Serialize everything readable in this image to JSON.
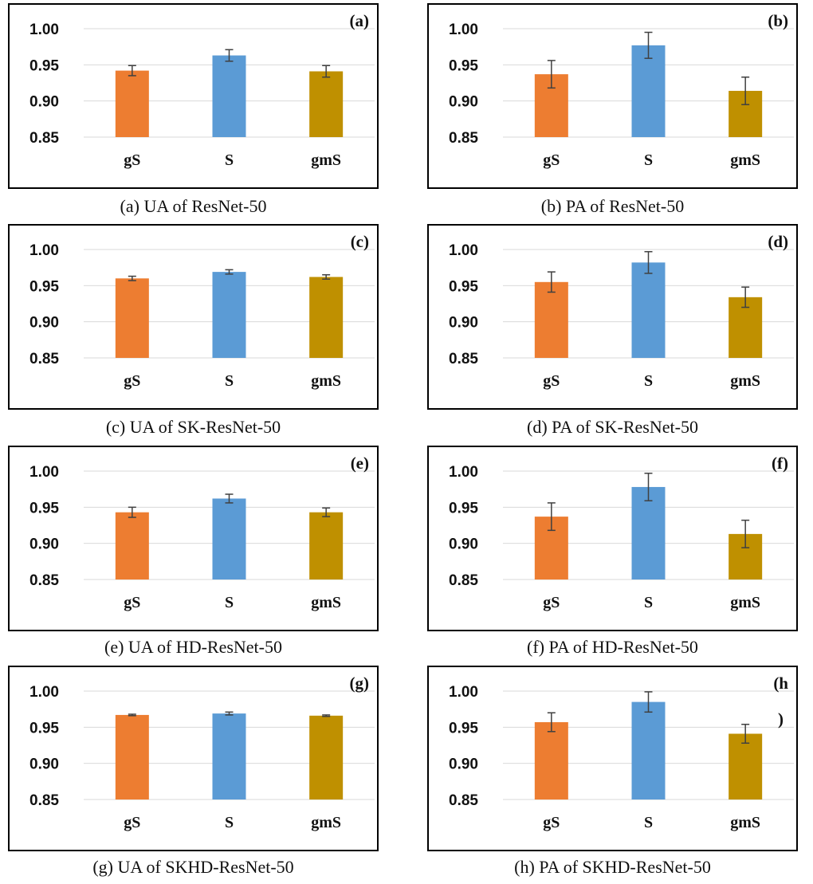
{
  "colors": {
    "gS": "#ED7D31",
    "S": "#5B9BD5",
    "gmS": "#BF9000",
    "grid": "#d9d9d9",
    "frame": "#000000",
    "error_bar": "#404040"
  },
  "chart_data": [
    {
      "type": "bar",
      "panel_label": "(a)",
      "caption": "(a) UA of ResNet-50",
      "categories": [
        "gS",
        "S",
        "gmS"
      ],
      "values": [
        0.942,
        0.963,
        0.941
      ],
      "errors": [
        0.007,
        0.008,
        0.008
      ],
      "yticks": [
        "0.85",
        "0.90",
        "0.95",
        "1.00"
      ],
      "ylim": [
        0.85,
        1.0
      ],
      "grid": true
    },
    {
      "type": "bar",
      "panel_label": "(b)",
      "caption": "(b) PA of ResNet-50",
      "categories": [
        "gS",
        "S",
        "gmS"
      ],
      "values": [
        0.937,
        0.977,
        0.914
      ],
      "errors": [
        0.019,
        0.018,
        0.019
      ],
      "yticks": [
        "0.85",
        "0.90",
        "0.95",
        "1.00"
      ],
      "ylim": [
        0.85,
        1.0
      ],
      "grid": true
    },
    {
      "type": "bar",
      "panel_label": "(c)",
      "caption": "(c) UA of SK-ResNet-50",
      "categories": [
        "gS",
        "S",
        "gmS"
      ],
      "values": [
        0.96,
        0.969,
        0.962
      ],
      "errors": [
        0.003,
        0.003,
        0.003
      ],
      "yticks": [
        "0.85",
        "0.90",
        "0.95",
        "1.00"
      ],
      "ylim": [
        0.85,
        1.0
      ],
      "grid": true
    },
    {
      "type": "bar",
      "panel_label": "(d)",
      "caption": "(d) PA of SK-ResNet-50",
      "categories": [
        "gS",
        "S",
        "gmS"
      ],
      "values": [
        0.955,
        0.982,
        0.934
      ],
      "errors": [
        0.014,
        0.015,
        0.014
      ],
      "yticks": [
        "0.85",
        "0.90",
        "0.95",
        "1.00"
      ],
      "ylim": [
        0.85,
        1.0
      ],
      "grid": true
    },
    {
      "type": "bar",
      "panel_label": "(e)",
      "caption": "(e) UA of HD-ResNet-50",
      "categories": [
        "gS",
        "S",
        "gmS"
      ],
      "values": [
        0.943,
        0.962,
        0.943
      ],
      "errors": [
        0.007,
        0.006,
        0.006
      ],
      "yticks": [
        "0.85",
        "0.90",
        "0.95",
        "1.00"
      ],
      "ylim": [
        0.85,
        1.0
      ],
      "grid": true
    },
    {
      "type": "bar",
      "panel_label": "(f)",
      "caption": "(f) PA of HD-ResNet-50",
      "categories": [
        "gS",
        "S",
        "gmS"
      ],
      "values": [
        0.937,
        0.978,
        0.913
      ],
      "errors": [
        0.019,
        0.019,
        0.019
      ],
      "yticks": [
        "0.85",
        "0.90",
        "0.95",
        "1.00"
      ],
      "ylim": [
        0.85,
        1.0
      ],
      "grid": true
    },
    {
      "type": "bar",
      "panel_label": "(g)",
      "caption": "(g) UA of SKHD-ResNet-50",
      "categories": [
        "gS",
        "S",
        "gmS"
      ],
      "values": [
        0.967,
        0.969,
        0.966
      ],
      "errors": [
        0.001,
        0.002,
        0.001
      ],
      "yticks": [
        "0.85",
        "0.90",
        "0.95",
        "1.00"
      ],
      "ylim": [
        0.85,
        1.0
      ],
      "grid": true
    },
    {
      "type": "bar",
      "panel_label": "(h\n)",
      "caption": "(h) PA of SKHD-ResNet-50",
      "categories": [
        "gS",
        "S",
        "gmS"
      ],
      "values": [
        0.957,
        0.985,
        0.941
      ],
      "errors": [
        0.013,
        0.014,
        0.013
      ],
      "yticks": [
        "0.85",
        "0.90",
        "0.95",
        "1.00"
      ],
      "ylim": [
        0.85,
        1.0
      ],
      "grid": true
    }
  ]
}
